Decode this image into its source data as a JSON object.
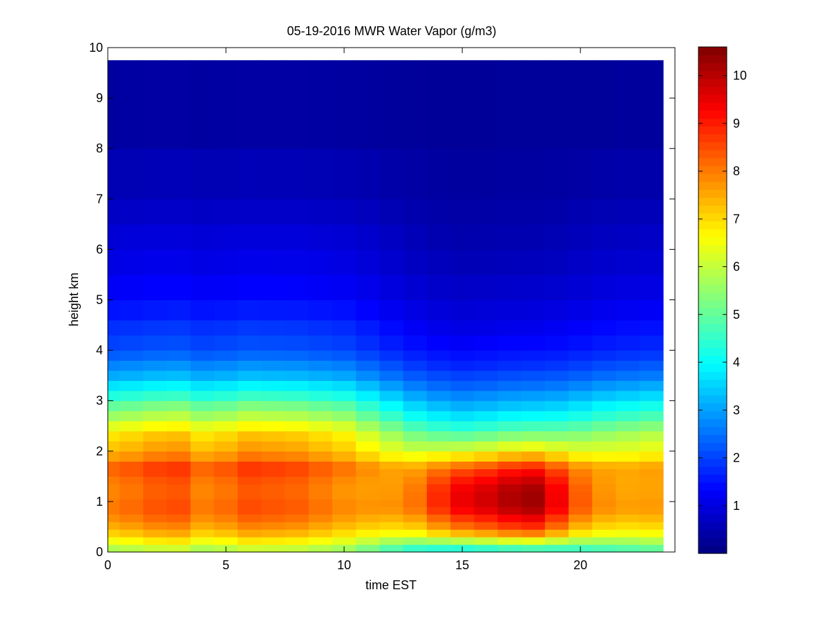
{
  "chart_data": {
    "type": "heatmap",
    "title": "05-19-2016 MWR Water Vapor (g/m3)",
    "xlabel": "time EST",
    "ylabel": "height km",
    "xlim": [
      0,
      24
    ],
    "ylim": [
      0,
      10
    ],
    "xticks": [
      0,
      5,
      10,
      15,
      20
    ],
    "yticks": [
      0,
      1,
      2,
      3,
      4,
      5,
      6,
      7,
      8,
      9,
      10
    ],
    "colorbar": {
      "range": [
        0,
        10.6
      ],
      "ticks": [
        1,
        2,
        3,
        4,
        5,
        6,
        7,
        8,
        9,
        10
      ],
      "colormap": "jet"
    },
    "data_extent": {
      "x": [
        0,
        23.5
      ],
      "y": [
        0,
        9.75
      ]
    },
    "times": [
      0,
      1,
      2,
      3,
      4,
      5,
      6,
      7,
      8,
      9,
      10,
      11,
      12,
      13,
      14,
      15,
      16,
      17,
      18,
      19,
      20,
      21,
      22,
      23
    ],
    "profiles": {
      "heights": [
        0.0,
        0.15,
        0.3,
        0.45,
        0.6,
        0.75,
        0.9,
        1.05,
        1.2,
        1.35,
        1.5,
        1.65,
        1.8,
        2.0,
        2.2,
        2.4,
        2.6,
        2.8,
        3.0,
        3.2,
        3.4,
        3.6,
        3.8,
        4.0,
        4.3,
        4.6,
        5.0,
        5.5,
        6.0,
        6.5,
        7.0,
        8.0,
        9.75
      ],
      "shape": [
        5.8,
        6.5,
        7.1,
        7.5,
        7.8,
        8.0,
        8.0,
        7.9,
        7.9,
        8.0,
        8.2,
        8.2,
        7.6,
        7.2,
        6.9,
        6.3,
        5.6,
        5.0,
        4.3,
        3.7,
        3.1,
        2.7,
        2.3,
        2.0,
        1.8,
        1.5,
        1.25,
        1.05,
        0.9,
        0.72,
        0.55,
        0.35,
        0.25
      ],
      "shape_late": [
        4.2,
        5.6,
        7.0,
        7.8,
        8.3,
        8.8,
        9.0,
        9.0,
        8.9,
        8.6,
        8.2,
        7.6,
        6.6,
        5.6,
        4.8,
        4.1,
        3.5,
        3.0,
        2.6,
        2.2,
        1.9,
        1.6,
        1.4,
        1.2,
        1.0,
        0.85,
        0.7,
        0.55,
        0.45,
        0.38,
        0.3,
        0.25,
        0.2
      ],
      "scale": [
        1.0,
        1.02,
        1.05,
        1.06,
        1.0,
        1.02,
        1.06,
        1.05,
        1.04,
        1.01,
        0.98,
        0.95,
        0.93,
        0.94,
        1.0,
        1.05,
        1.08,
        1.12,
        1.14,
        1.06,
        0.97,
        0.93,
        0.92,
        0.93
      ],
      "blend": [
        0,
        0,
        0,
        0,
        0,
        0,
        0,
        0,
        0,
        0,
        0,
        0.15,
        0.35,
        0.6,
        0.85,
        1,
        1,
        1,
        1,
        0.85,
        0.6,
        0.4,
        0.3,
        0.25
      ]
    }
  }
}
